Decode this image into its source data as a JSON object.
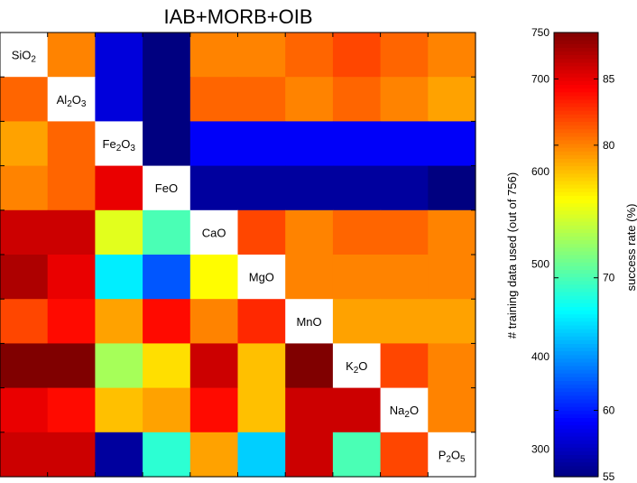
{
  "chart_data": {
    "type": "heatmap",
    "title": "IAB+MORB+OIB",
    "labels": [
      [
        "SiO",
        "2",
        ""
      ],
      [
        "Al",
        "2",
        "O",
        "3"
      ],
      [
        "Fe",
        "2",
        "O",
        "3"
      ],
      [
        "FeO"
      ],
      [
        "CaO"
      ],
      [
        "MgO"
      ],
      [
        "MnO"
      ],
      [
        "K",
        "2",
        "O"
      ],
      [
        "Na",
        "2",
        "O"
      ],
      [
        "P",
        "2",
        "O",
        "5"
      ]
    ],
    "label_text": [
      "SiO2",
      "Al2O3",
      "Fe2O3",
      "FeO",
      "CaO",
      "MgO",
      "MnO",
      "K2O",
      "Na2O",
      "P2O5"
    ],
    "upper_triangle_note": "training data used",
    "values": [
      [
        null,
        80,
        58,
        55,
        80,
        80,
        81,
        82,
        81,
        80
      ],
      [
        81,
        null,
        58,
        55,
        81,
        81,
        80,
        81,
        80,
        79
      ],
      [
        79,
        81,
        null,
        55,
        59,
        59,
        59,
        59,
        59,
        59
      ],
      [
        80,
        81,
        85,
        null,
        56,
        56,
        56,
        56,
        56,
        55
      ],
      [
        86,
        86,
        75,
        70,
        null,
        82,
        80,
        81,
        81,
        80
      ],
      [
        87,
        85,
        67,
        62,
        76,
        null,
        80,
        80,
        80,
        80
      ],
      [
        82,
        84,
        79,
        84,
        80,
        83,
        null,
        79,
        79,
        79
      ],
      [
        90,
        90,
        73,
        77,
        86,
        78,
        90,
        null,
        82,
        80
      ],
      [
        85,
        84,
        78,
        79,
        84,
        78,
        86,
        86,
        null,
        80
      ],
      [
        86,
        86,
        56,
        69,
        79,
        66,
        86,
        70,
        82,
        null
      ]
    ],
    "color_scale": {
      "label": "success rate (%)",
      "min": 55,
      "max": 88.5,
      "ticks": [
        55,
        60,
        70,
        80,
        85
      ]
    },
    "secondary_axis": {
      "label": "# training data used (out of 756)",
      "min": 270,
      "max": 750,
      "ticks": [
        300,
        400,
        500,
        600,
        700,
        750
      ]
    }
  }
}
